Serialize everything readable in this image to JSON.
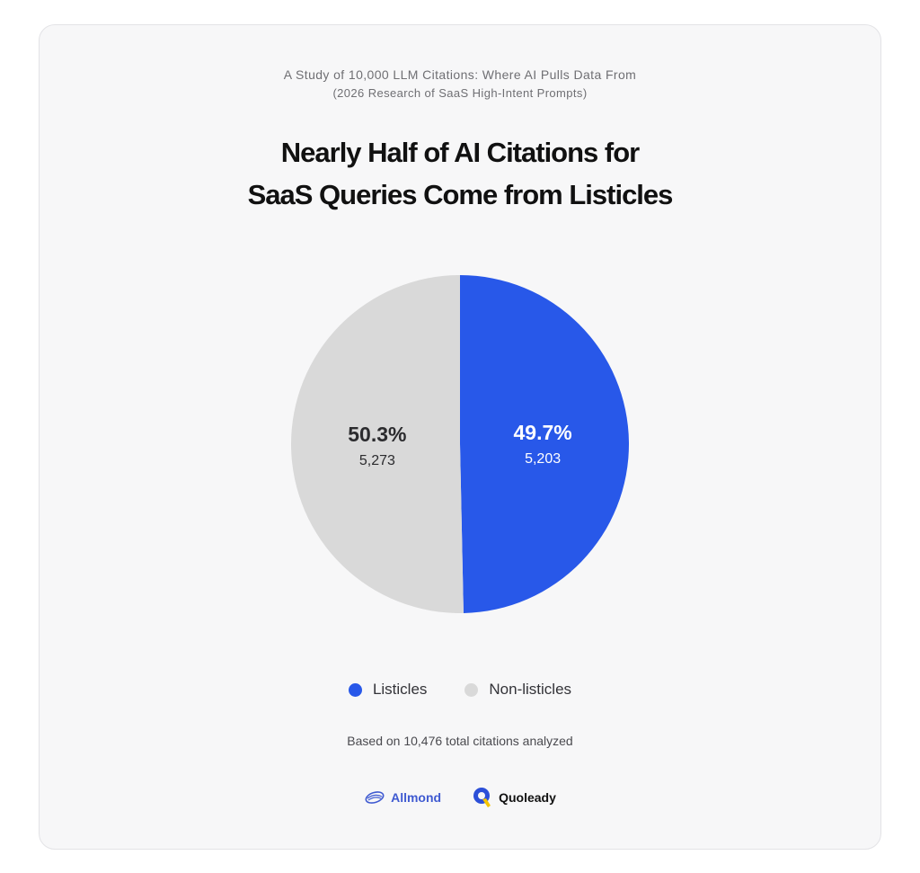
{
  "header": {
    "subtitle_line1": "A Study of 10,000 LLM Citations: Where AI Pulls Data From",
    "subtitle_line2": "(2026 Research of SaaS High-Intent Prompts)",
    "title_line1": "Nearly Half of AI Citations for",
    "title_line2": "SaaS Queries Come from Listicles"
  },
  "chart_data": {
    "type": "pie",
    "slices": [
      {
        "name": "Listicles",
        "value": 5203,
        "percent_label": "49.7%",
        "value_label": "5,203",
        "color": "#2858e9"
      },
      {
        "name": "Non-listicles",
        "value": 5273,
        "percent_label": "50.3%",
        "value_label": "5,273",
        "color": "#d9d9d9"
      }
    ],
    "legend_position": "bottom",
    "start": "top, clockwise"
  },
  "footnote": "Based on 10,476 total citations analyzed",
  "logos": {
    "allmond": "Allmond",
    "quoleady": "Quoleady"
  },
  "icons": {
    "allmond": "allmond-logo-icon",
    "quoleady": "quoleady-logo-icon"
  },
  "colors": {
    "card_background": "#f7f7f8",
    "listicles": "#2858e9",
    "non_listicles": "#d9d9d9"
  }
}
